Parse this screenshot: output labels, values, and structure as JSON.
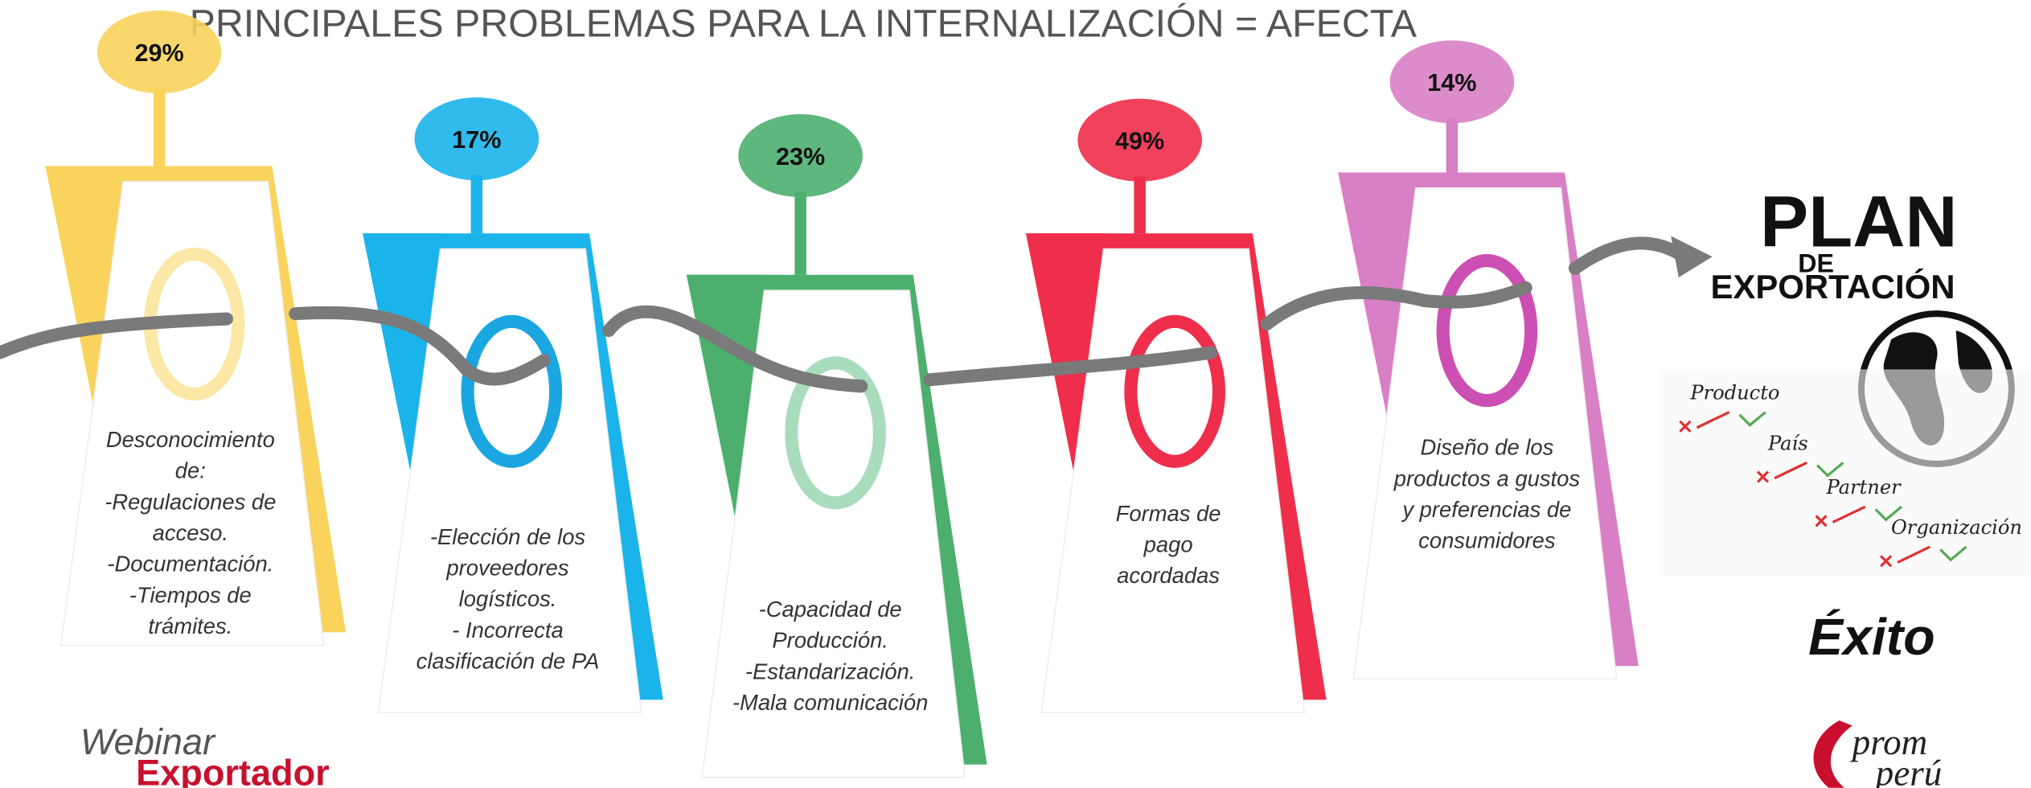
{
  "header": {
    "title": "PRINCIPALES PROBLEMAS PARA LA INTERNALIZACIÓN = AFECTA"
  },
  "items": [
    {
      "percent": "29%",
      "color": "#f9d35c",
      "ring": "#fbe7a6",
      "lines": [
        "Desconocimiento",
        "de:",
        "-Regulaciones de",
        "acceso.",
        "-Documentación.",
        "-Tiempos de",
        "trámites."
      ]
    },
    {
      "percent": "17%",
      "color": "#1ab4ea",
      "ring": "#1aa6e0",
      "lines": [
        "-Elección de los",
        "proveedores",
        "logísticos.",
        "- Incorrecta",
        "clasificación de  PA"
      ]
    },
    {
      "percent": "23%",
      "color": "#4caf6e",
      "ring": "#a9dcbd",
      "lines": [
        "-Capacidad de",
        "Producción.",
        "-Estandarización.",
        "-Mala comunicación"
      ]
    },
    {
      "percent": "49%",
      "color": "#ee2e4b",
      "ring": "#ee2e4b",
      "lines": [
        "Formas de",
        "pago",
        "acordadas"
      ]
    },
    {
      "percent": "14%",
      "color": "#d97fc5",
      "ring": "#cc4fb4",
      "lines": [
        "Diseño de los",
        "productos a gustos",
        "y preferencias de",
        "consumidores"
      ]
    }
  ],
  "plan": {
    "title": "PLAN",
    "de": "DE",
    "exportacion": "EXPORTACIÓN",
    "checklist": [
      "Producto",
      "País",
      "Partner",
      "Organización"
    ],
    "result": "Éxito"
  },
  "footer": {
    "webinar": "Webinar",
    "exportador": "Exportador",
    "logo_top": "prom",
    "logo_bottom": "perú"
  }
}
